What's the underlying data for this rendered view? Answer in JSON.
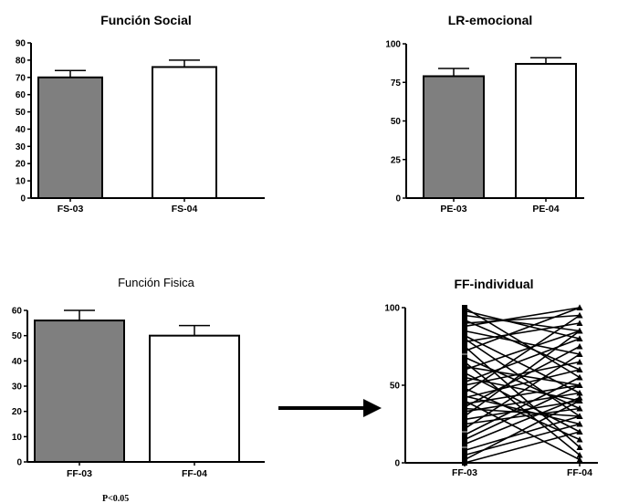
{
  "chart_data": [
    {
      "type": "bar",
      "title": "Función Social",
      "categories": [
        "FS-03",
        "FS-04"
      ],
      "values": [
        70,
        76
      ],
      "errors": [
        4,
        4
      ],
      "fills": [
        "#7f7f7f",
        "#ffffff"
      ],
      "ylim": [
        0,
        90
      ],
      "yticks": [
        0,
        10,
        20,
        30,
        40,
        50,
        60,
        70,
        80,
        90
      ]
    },
    {
      "type": "bar",
      "title": "LR-emocional",
      "categories": [
        "PE-03",
        "PE-04"
      ],
      "values": [
        79,
        87
      ],
      "errors": [
        5,
        4
      ],
      "fills": [
        "#7f7f7f",
        "#ffffff"
      ],
      "ylim": [
        0,
        100
      ],
      "yticks": [
        0,
        25,
        50,
        75,
        100
      ]
    },
    {
      "type": "bar",
      "title": "Función Fisica",
      "categories": [
        "FF-03",
        "FF-04"
      ],
      "values": [
        56,
        50
      ],
      "errors": [
        4,
        4
      ],
      "fills": [
        "#7f7f7f",
        "#ffffff"
      ],
      "ylim": [
        0,
        60
      ],
      "yticks": [
        0,
        10,
        20,
        30,
        40,
        50,
        60
      ],
      "annotation": "P<0.05"
    },
    {
      "type": "line",
      "title": "FF-individual",
      "categories": [
        "FF-03",
        "FF-04"
      ],
      "ylim": [
        0,
        100
      ],
      "yticks": [
        0,
        50,
        100
      ],
      "pairs": [
        [
          100,
          55
        ],
        [
          98,
          80
        ],
        [
          95,
          85
        ],
        [
          92,
          60
        ],
        [
          90,
          95
        ],
        [
          88,
          100
        ],
        [
          85,
          70
        ],
        [
          82,
          45
        ],
        [
          80,
          30
        ],
        [
          78,
          90
        ],
        [
          75,
          10
        ],
        [
          72,
          100
        ],
        [
          68,
          35
        ],
        [
          65,
          5
        ],
        [
          62,
          50
        ],
        [
          60,
          85
        ],
        [
          58,
          20
        ],
        [
          55,
          40
        ],
        [
          52,
          80
        ],
        [
          50,
          65
        ],
        [
          48,
          15
        ],
        [
          45,
          95
        ],
        [
          43,
          25
        ],
        [
          42,
          60
        ],
        [
          40,
          2
        ],
        [
          38,
          50
        ],
        [
          36,
          75
        ],
        [
          35,
          30
        ],
        [
          33,
          45
        ],
        [
          30,
          85
        ],
        [
          28,
          40
        ],
        [
          25,
          35
        ],
        [
          22,
          70
        ],
        [
          18,
          55
        ],
        [
          15,
          50
        ],
        [
          12,
          42
        ],
        [
          8,
          30
        ],
        [
          5,
          25
        ],
        [
          2,
          40
        ],
        [
          0,
          20
        ]
      ]
    }
  ]
}
